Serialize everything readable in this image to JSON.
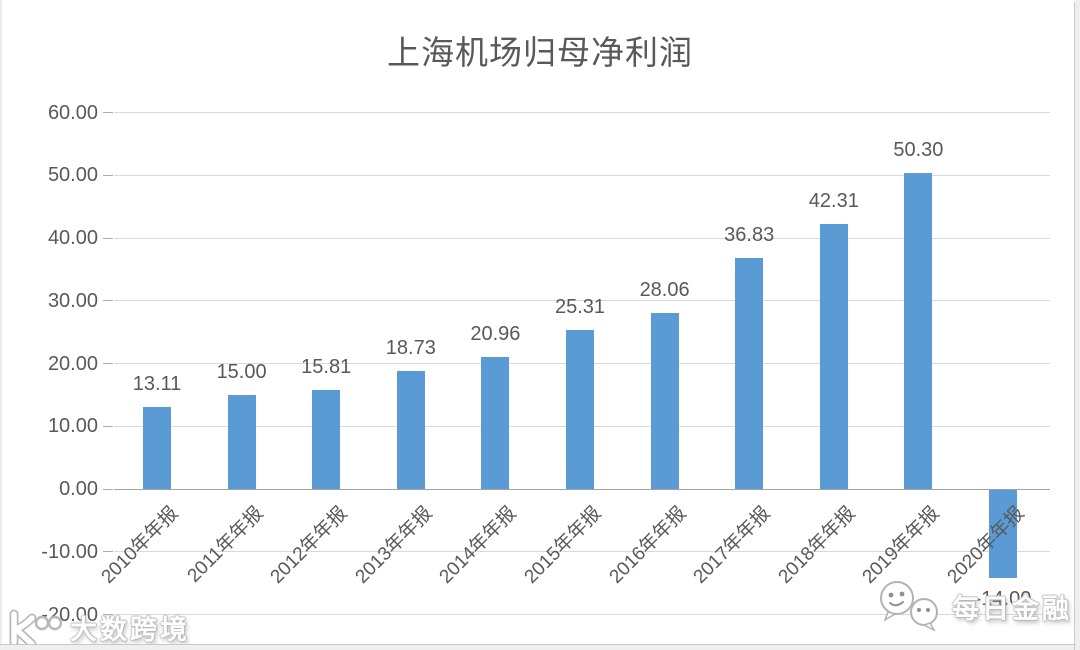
{
  "chart_data": {
    "type": "bar",
    "title": "上海机场归母净利润",
    "categories": [
      "2010年年报",
      "2011年年报",
      "2012年年报",
      "2013年年报",
      "2014年年报",
      "2015年年报",
      "2016年年报",
      "2017年年报",
      "2018年年报",
      "2019年年报",
      "2020年年报"
    ],
    "values": [
      13.11,
      15.0,
      15.81,
      18.73,
      20.96,
      25.31,
      28.06,
      36.83,
      42.31,
      50.3,
      -14.0
    ],
    "bar_labels": [
      "13.11",
      "15.00",
      "15.81",
      "18.73",
      "20.96",
      "25.31",
      "28.06",
      "36.83",
      "42.31",
      "50.30",
      "-14.00"
    ],
    "yticks": [
      "60.00",
      "50.00",
      "40.00",
      "30.00",
      "20.00",
      "10.00",
      "0.00",
      "-10.00",
      "-20.00"
    ],
    "ylim": [
      -20,
      60
    ],
    "ytick_step": 10,
    "xlabel": "",
    "ylabel": "",
    "grid": true,
    "legend_position": "none",
    "bar_color": "#5b9bd5",
    "gridline_color": "#d9d9d9",
    "zero_axis_color": "#a3a3a3",
    "text_color": "#595959"
  },
  "watermarks": {
    "bottom_left": {
      "text": "大数跨境"
    },
    "bottom_right": {
      "text": "每日金融"
    }
  }
}
